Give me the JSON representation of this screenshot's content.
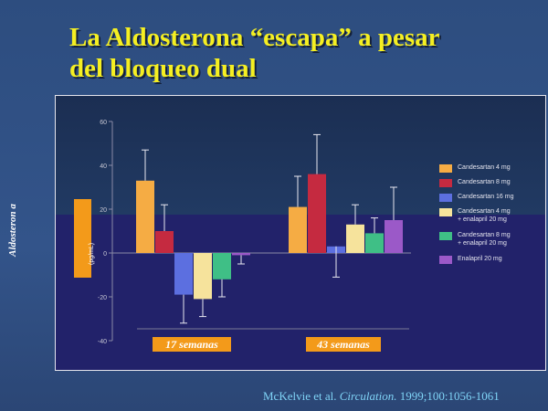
{
  "slide": {
    "title": "La Aldosterona “escapa” a pesar del bloqueo dual",
    "citation_authors": "McKelvie et al.",
    "citation_journal": "Circulation.",
    "citation_ref": "1999;100:1056-1061"
  },
  "colors": {
    "accent_orange": "#f39a1a",
    "title_yellow": "#f5ef22",
    "citation_cyan": "#7fd3f6"
  },
  "chart_data": {
    "type": "bar",
    "title": "",
    "xlabel": "",
    "ylabel": "Aldosteron a",
    "ylabel_units": "(pg/mL)",
    "ylim": [
      -40,
      60
    ],
    "yticks": [
      60,
      40,
      20,
      0,
      -20,
      -40
    ],
    "categories": [
      "17 semanas",
      "43 semanas"
    ],
    "legend_position": "right",
    "series": [
      {
        "name": "Candesartan 4 mg",
        "color": "#f5ac44",
        "values": [
          33,
          21
        ],
        "err_upper": [
          47,
          35
        ]
      },
      {
        "name": "Candesartan 8 mg",
        "color": "#c52a40",
        "values": [
          10,
          36
        ],
        "err_upper": [
          22,
          54
        ]
      },
      {
        "name": "Candesartan 16 mg",
        "color": "#5c6fe0",
        "values": [
          -19,
          3
        ],
        "err_lower": [
          -32,
          -11
        ]
      },
      {
        "name": "Candesartan 4 mg\n+ enalapril 20 mg",
        "color": "#f6e39c",
        "values": [
          -21,
          13
        ],
        "err_lower": [
          -29
        ],
        "err_upper": [
          null,
          22
        ]
      },
      {
        "name": "Candesartan 8 mg\n+ enalapril 20 mg",
        "color": "#3fbf86",
        "values": [
          -12,
          9
        ],
        "err_lower": [
          -20
        ],
        "err_upper": [
          null,
          16
        ]
      },
      {
        "name": "Enalapril 20 mg",
        "color": "#9b59c8",
        "values": [
          -1,
          15
        ],
        "err_lower": [
          -5
        ],
        "err_upper": [
          null,
          30
        ]
      }
    ]
  }
}
